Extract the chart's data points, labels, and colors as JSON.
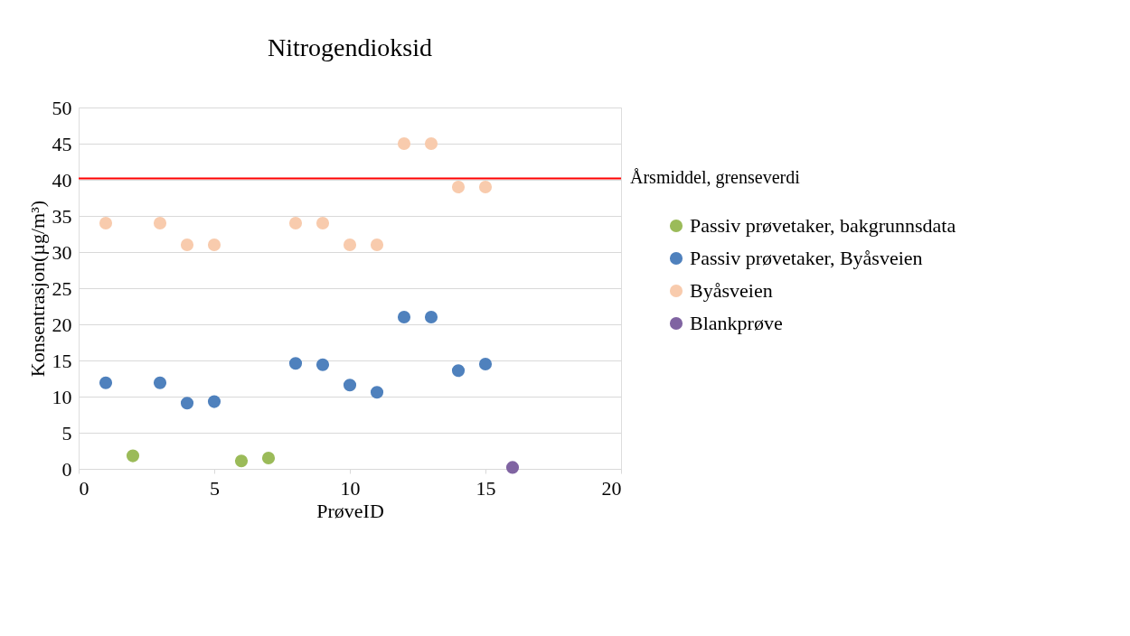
{
  "chart_data": {
    "type": "scatter",
    "title": "Nitrogendioksid",
    "xlabel": "PrøveID",
    "ylabel": "Konsentrasjon(µg/m³)",
    "xlim": [
      0,
      20
    ],
    "xticks": [
      0,
      5,
      10,
      15,
      20
    ],
    "ylim": [
      0,
      50
    ],
    "yticks": [
      0,
      5,
      10,
      15,
      20,
      25,
      30,
      35,
      40,
      45,
      50
    ],
    "grid": "y",
    "legend": "right",
    "marker": "circle",
    "ref_lines": [
      {
        "axis": "y",
        "value": 40.2,
        "label": "Årsmiddel, grenseverdi",
        "color": "#ff0000"
      }
    ],
    "series": [
      {
        "name": "Passiv prøvetaker, bakgrunnsdata",
        "color": "#9bbb59",
        "x": [
          2,
          6,
          7
        ],
        "values": [
          1.8,
          1.1,
          1.5
        ]
      },
      {
        "name": "Passiv prøvetaker, Byåsveien",
        "color": "#4f81bd",
        "x": [
          1,
          3,
          4,
          5,
          8,
          9,
          10,
          11,
          12,
          13,
          14,
          15
        ],
        "values": [
          11.9,
          11.9,
          9.1,
          9.3,
          14.6,
          14.4,
          11.6,
          10.6,
          21,
          21,
          13.6,
          14.5
        ]
      },
      {
        "name": "Byåsveien",
        "color": "#f8cbad",
        "x": [
          1,
          3,
          4,
          5,
          8,
          9,
          10,
          11,
          12,
          13,
          14,
          15
        ],
        "values": [
          34,
          34,
          31,
          31,
          34,
          34,
          31,
          31,
          45,
          45,
          39,
          39
        ]
      },
      {
        "name": "Blankprøve",
        "color": "#8064a2",
        "x": [
          16
        ],
        "values": [
          0.2
        ]
      }
    ]
  }
}
